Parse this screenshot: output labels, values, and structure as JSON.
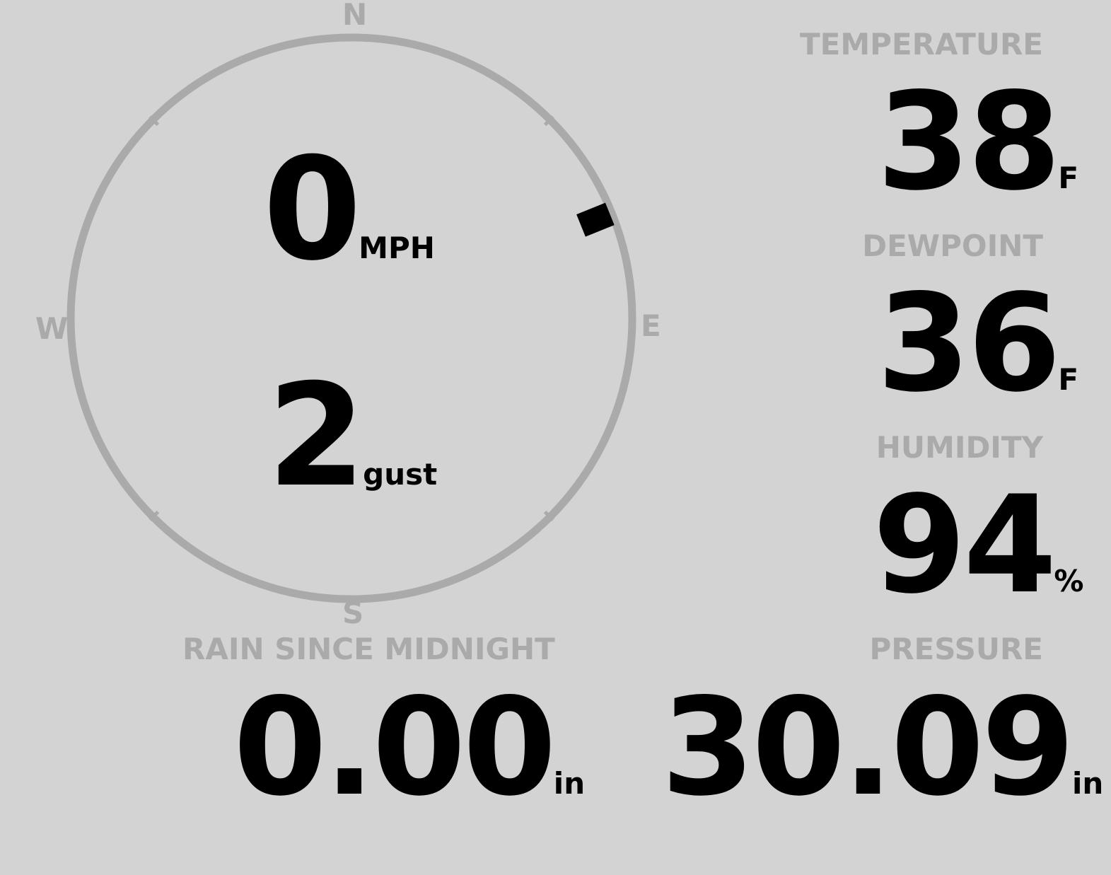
{
  "colors": {
    "background": "#d3d3d3",
    "label": "#aaaaaa",
    "value": "#000000"
  },
  "wind": {
    "compass": {
      "north": "N",
      "south": "S",
      "east": "E",
      "west": "W"
    },
    "direction_degrees": 68,
    "speed": "0",
    "speed_unit": "MPH",
    "gust": "2",
    "gust_unit": "gust"
  },
  "temperature": {
    "label": "TEMPERATURE",
    "value": "38",
    "unit": "F"
  },
  "dewpoint": {
    "label": "DEWPOINT",
    "value": "36",
    "unit": "F"
  },
  "humidity": {
    "label": "HUMIDITY",
    "value": "94",
    "unit": "%"
  },
  "rain": {
    "label": "RAIN SINCE MIDNIGHT",
    "value": "0.00",
    "unit": "in"
  },
  "pressure": {
    "label": "PRESSURE",
    "value": "30.09",
    "unit": "in"
  }
}
